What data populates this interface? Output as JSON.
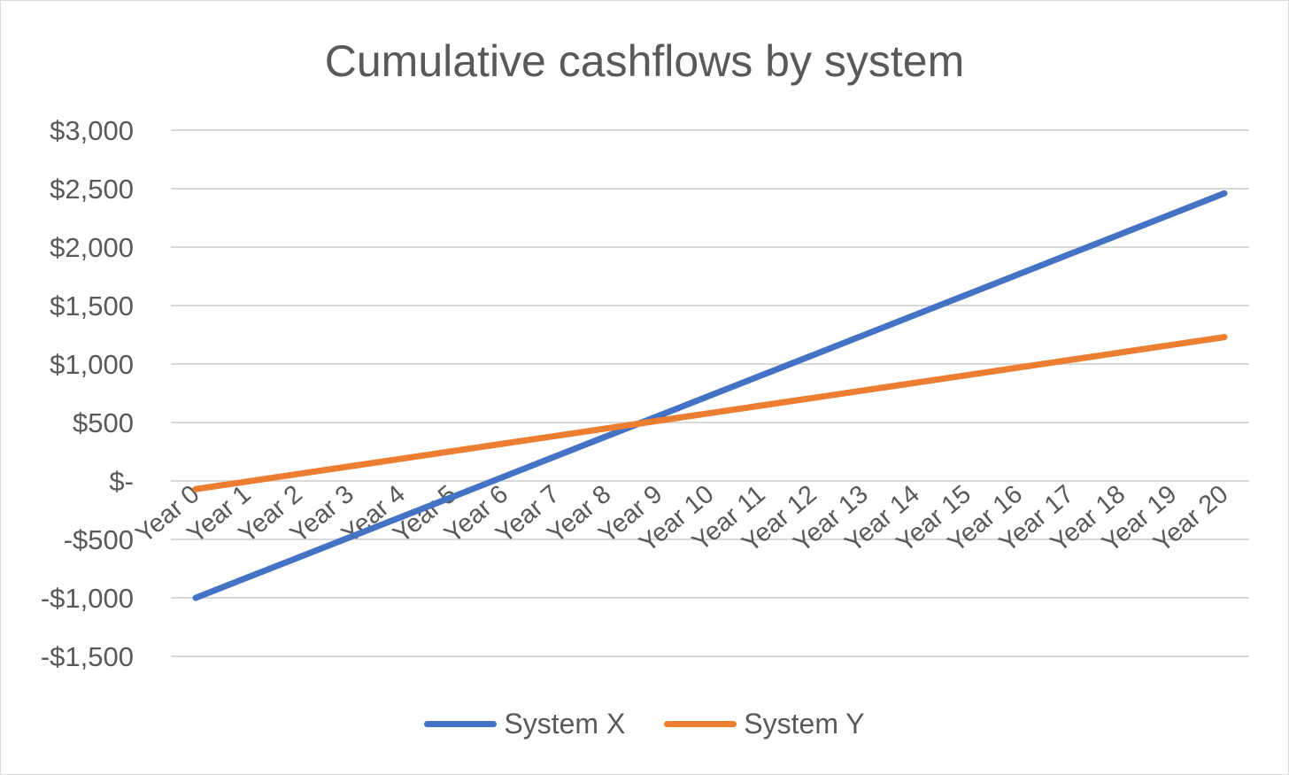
{
  "chart_data": {
    "type": "line",
    "title": "Cumulative cashflows by system",
    "categories": [
      "Year 0",
      "Year 1",
      "Year 2",
      "Year 3",
      "Year 4",
      "Year 5",
      "Year 6",
      "Year 7",
      "Year 8",
      "Year 9",
      "Year 10",
      "Year 11",
      "Year 12",
      "Year 13",
      "Year 14",
      "Year 15",
      "Year 16",
      "Year 17",
      "Year 18",
      "Year 19",
      "Year 20"
    ],
    "series": [
      {
        "name": "System X",
        "color": "#4472c4",
        "values": [
          -1000,
          -827,
          -654,
          -481,
          -308,
          -135,
          38,
          211,
          384,
          557,
          730,
          903,
          1076,
          1249,
          1422,
          1595,
          1768,
          1941,
          2114,
          2287,
          2460
        ]
      },
      {
        "name": "System Y",
        "color": "#ed7d31",
        "values": [
          -70,
          -5,
          60,
          125,
          190,
          255,
          320,
          385,
          450,
          515,
          580,
          645,
          710,
          775,
          840,
          905,
          970,
          1035,
          1100,
          1165,
          1230
        ]
      }
    ],
    "yticks": [
      {
        "value": 3000,
        "label": "$3,000"
      },
      {
        "value": 2500,
        "label": "$2,500"
      },
      {
        "value": 2000,
        "label": "$2,000"
      },
      {
        "value": 1500,
        "label": "$1,500"
      },
      {
        "value": 1000,
        "label": "$1,000"
      },
      {
        "value": 500,
        "label": "$500"
      },
      {
        "value": 0,
        "label": "$-"
      },
      {
        "value": -500,
        "label": "-$500"
      },
      {
        "value": -1000,
        "label": "-$1,000"
      },
      {
        "value": -1500,
        "label": "-$1,500"
      }
    ],
    "ylim": [
      -1500,
      3000
    ],
    "xlabel": "",
    "ylabel": "",
    "grid": true,
    "legend": "bottom"
  }
}
